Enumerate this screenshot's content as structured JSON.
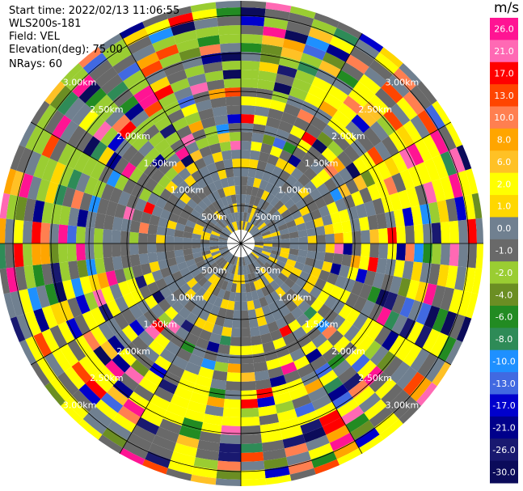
{
  "header": {
    "start_time": "Start time: 2022/02/13 11:06:55",
    "instrument": "WLS200s-181",
    "field": "Field: VEL",
    "elevation": "Elevation(deg): 75.00",
    "nrays": "NRays: 60"
  },
  "chart_data": {
    "type": "ppi-polar-heatmap",
    "field": "VEL",
    "units": "m/s",
    "nrays": 60,
    "ranges_km": [
      "500m",
      "1.00km",
      "1.50km",
      "2.00km",
      "2.50km",
      "3.00km"
    ],
    "colorbar": {
      "unit_label": "m/s",
      "levels": [
        {
          "label": "26.0",
          "color": "#ff1493"
        },
        {
          "label": "21.0",
          "color": "#ff69b4"
        },
        {
          "label": "17.0",
          "color": "#ff0000"
        },
        {
          "label": "13.0",
          "color": "#ff4500"
        },
        {
          "label": "10.0",
          "color": "#ff7f50"
        },
        {
          "label": "8.0",
          "color": "#ffa500"
        },
        {
          "label": "6.0",
          "color": "#ffc125"
        },
        {
          "label": "2.0",
          "color": "#ffff00"
        },
        {
          "label": "1.0",
          "color": "#ffd700"
        },
        {
          "label": "0.0",
          "color": "#708090"
        },
        {
          "label": "-1.0",
          "color": "#696969"
        },
        {
          "label": "-2.0",
          "color": "#9acd32"
        },
        {
          "label": "-4.0",
          "color": "#6b8e23"
        },
        {
          "label": "-6.0",
          "color": "#228b22"
        },
        {
          "label": "-8.0",
          "color": "#2e8b57"
        },
        {
          "label": "-10.0",
          "color": "#1e90ff"
        },
        {
          "label": "-13.0",
          "color": "#4169e1"
        },
        {
          "label": "-17.0",
          "color": "#0000cd"
        },
        {
          "label": "-21.0",
          "color": "#00008b"
        },
        {
          "label": "-26.0",
          "color": "#191970"
        },
        {
          "label": "-30.0",
          "color": "#0b0b5a"
        }
      ]
    }
  }
}
